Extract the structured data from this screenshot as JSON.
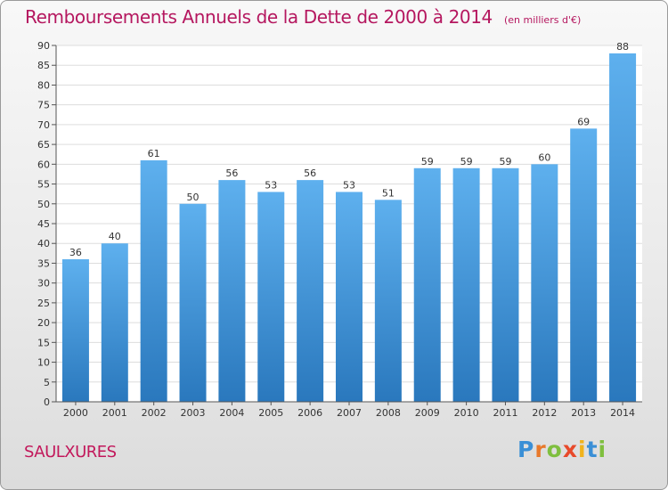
{
  "chart_data": {
    "type": "bar",
    "title": "Remboursements Annuels de la Dette de 2000 à 2014",
    "subtitle": "(en milliers d'€)",
    "categories": [
      "2000",
      "2001",
      "2002",
      "2003",
      "2004",
      "2005",
      "2006",
      "2007",
      "2008",
      "2009",
      "2010",
      "2011",
      "2012",
      "2013",
      "2014"
    ],
    "values": [
      36,
      40,
      61,
      50,
      56,
      53,
      56,
      53,
      51,
      59,
      59,
      59,
      60,
      69,
      88
    ],
    "xlabel": "",
    "ylabel": "",
    "ylim": [
      0,
      90
    ],
    "yticks": [
      0,
      5,
      10,
      15,
      20,
      25,
      30,
      35,
      40,
      45,
      50,
      55,
      60,
      65,
      70,
      75,
      80,
      85,
      90
    ],
    "grid": true,
    "bar_color": "#4a9ee0"
  },
  "footer": {
    "city": "SAULXURES",
    "logo_letters": [
      "P",
      "r",
      "o",
      "x",
      "i",
      "t",
      "i"
    ],
    "logo_colors": [
      "#3a8fd6",
      "#e8792b",
      "#7fbf3f",
      "#e84a2b",
      "#f1b31c",
      "#3a8fd6",
      "#7fbf3f"
    ]
  }
}
